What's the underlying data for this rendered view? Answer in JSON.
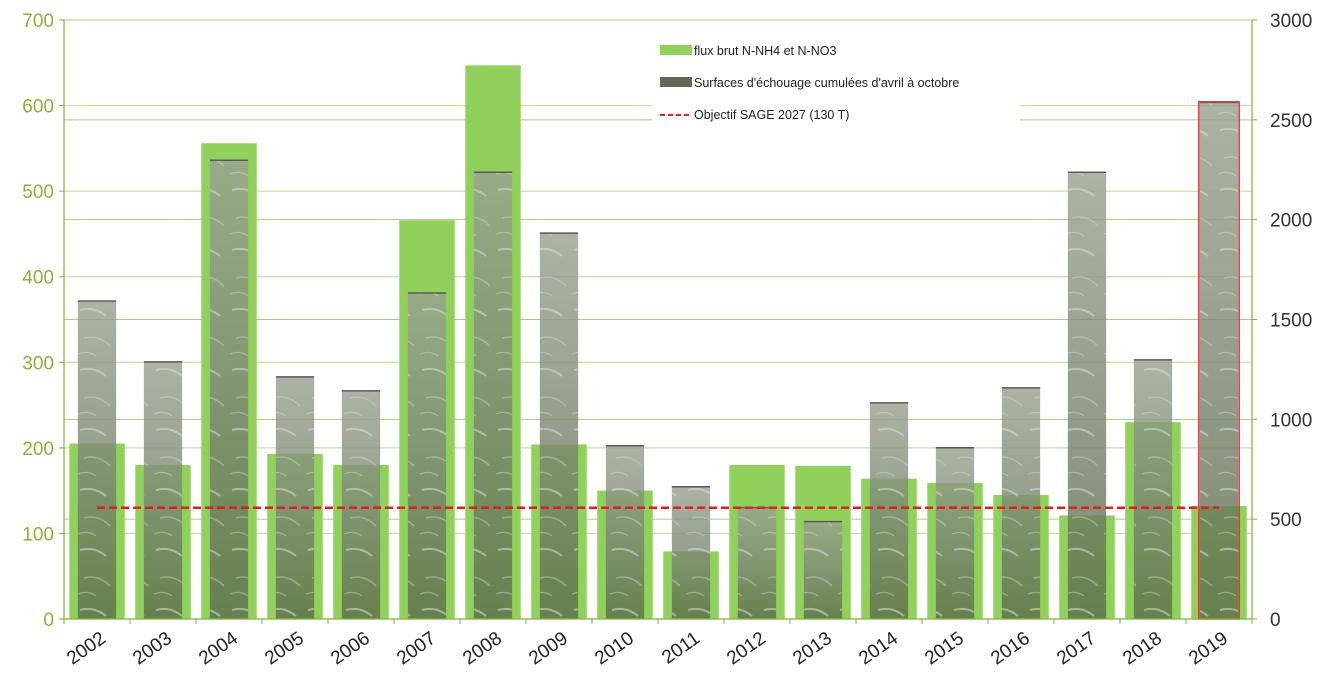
{
  "chart_data": {
    "type": "bar",
    "categories": [
      "2002",
      "2003",
      "2004",
      "2005",
      "2006",
      "2007",
      "2008",
      "2009",
      "2010",
      "2011",
      "2012",
      "2013",
      "2014",
      "2015",
      "2016",
      "2017",
      "2018",
      "2019"
    ],
    "series": [
      {
        "name": "flux brut N-NH4 et N-NO3",
        "axis": "left",
        "color": "#8fd15a",
        "values": [
          205,
          180,
          556,
          193,
          180,
          466,
          647,
          204,
          150,
          79,
          180,
          179,
          164,
          159,
          145,
          121,
          230,
          132
        ]
      },
      {
        "name": "Surfaces d'échouage cumulées d'avril à octobre",
        "axis": "right",
        "color": "#5f6b55",
        "values": [
          1595,
          1290,
          2300,
          1215,
          1145,
          1635,
          2240,
          1935,
          870,
          665,
          560,
          490,
          1085,
          860,
          1160,
          2240,
          1300,
          2590
        ]
      }
    ],
    "target_line": {
      "name": "Objectif SAGE 2027 (130 T)",
      "value": 130,
      "axis": "left",
      "color": "#e02020"
    },
    "highlighted_category": "2019",
    "y_left": {
      "ylim": [
        0,
        700
      ],
      "ticks": [
        "0",
        "100",
        "200",
        "300",
        "400",
        "500",
        "600",
        "700"
      ]
    },
    "y_right": {
      "ylim": [
        0,
        3000
      ],
      "ticks": [
        "0",
        "500",
        "1000",
        "1500",
        "2000",
        "2500",
        "3000"
      ]
    },
    "grid": true,
    "legend_position": "top-center"
  }
}
